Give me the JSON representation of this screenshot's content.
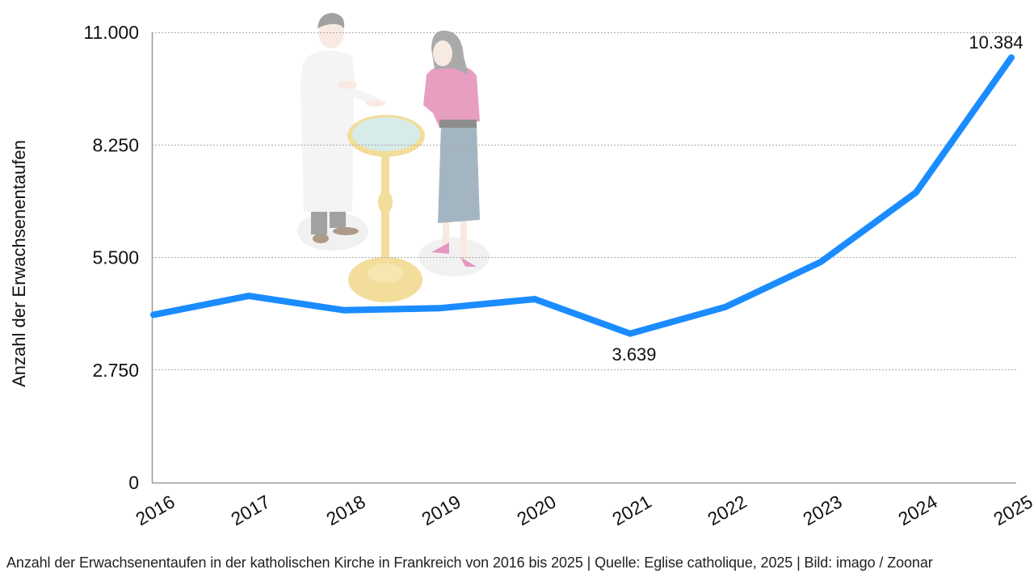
{
  "chart_data": {
    "type": "line",
    "title": "",
    "xlabel": "",
    "ylabel": "Anzahl der Erwachsenentaufen",
    "categories": [
      "2016",
      "2017",
      "2018",
      "2019",
      "2020",
      "2021",
      "2022",
      "2023",
      "2024",
      "2025"
    ],
    "series": [
      {
        "name": "Erwachsenentaufen",
        "color": "#1a8cff",
        "values": [
          4100,
          4560,
          4210,
          4260,
          4480,
          3639,
          4290,
          5390,
          7090,
          10384
        ]
      }
    ],
    "ylim": [
      0,
      11000
    ],
    "yticks": [
      0,
      2750,
      5500,
      8250,
      11000
    ],
    "ytick_labels": [
      "0",
      "2.750",
      "5.500",
      "8.250",
      "11.000"
    ],
    "grid": true,
    "legend": "none",
    "annotations": [
      {
        "category": "2021",
        "label": "3.639"
      },
      {
        "category": "2025",
        "label": "10.384"
      }
    ]
  },
  "illustration": {
    "description": "priest-and-woman-at-baptismal-font"
  },
  "footer": {
    "caption": "Anzahl der Erwachsenentaufen in der katholischen Kirche in Frankreich von 2016 bis 2025 | Quelle: Eglise catholique, 2025 | Bild: imago / Zoonar"
  }
}
